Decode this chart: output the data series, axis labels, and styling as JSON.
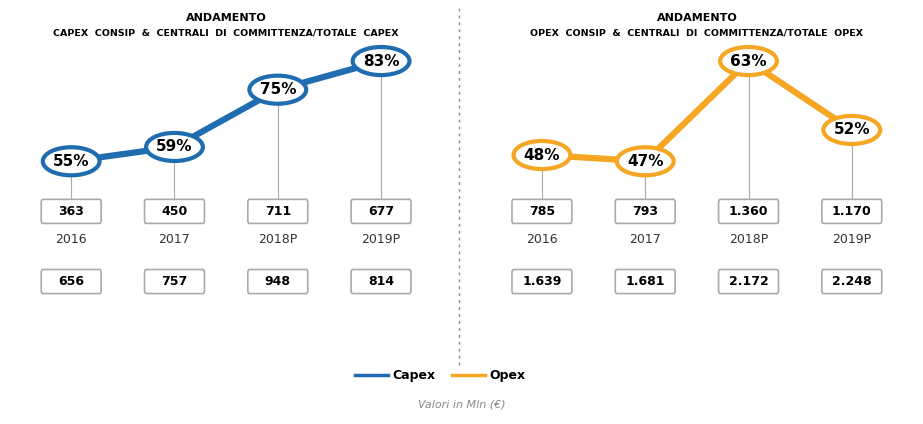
{
  "capex_percentages": [
    55,
    59,
    75,
    83
  ],
  "opex_percentages": [
    48,
    47,
    63,
    52
  ],
  "years": [
    "2016",
    "2017",
    "2018P",
    "2019P"
  ],
  "capex_values": [
    "363",
    "450",
    "711",
    "677"
  ],
  "capex_totals": [
    "656",
    "757",
    "948",
    "814"
  ],
  "opex_values": [
    "785",
    "793",
    "1.360",
    "1.170"
  ],
  "opex_totals": [
    "1.639",
    "1.681",
    "2.172",
    "2.248"
  ],
  "capex_color": "#1F6CB0",
  "opex_color": "#F5A623",
  "title_capex_line1": "ANDAMENTO",
  "title_capex_line2": "CAPEX  CONSIP  &  CENTRALI  DI  COMMITTENZA/TOTALE  CAPEX",
  "title_opex_line1": "ANDAMENTO",
  "title_opex_line2": "OPEX  CONSIP  &  CENTRALI  DI  COMMITTENZA/TOTALE  OPEX",
  "legend_capex": "Capex",
  "legend_opex": "Opex",
  "footer": "Valori in Mln (€)",
  "year_color": "#333333",
  "box_edge_color": "#aaaaaa",
  "divider_color": "#888888"
}
